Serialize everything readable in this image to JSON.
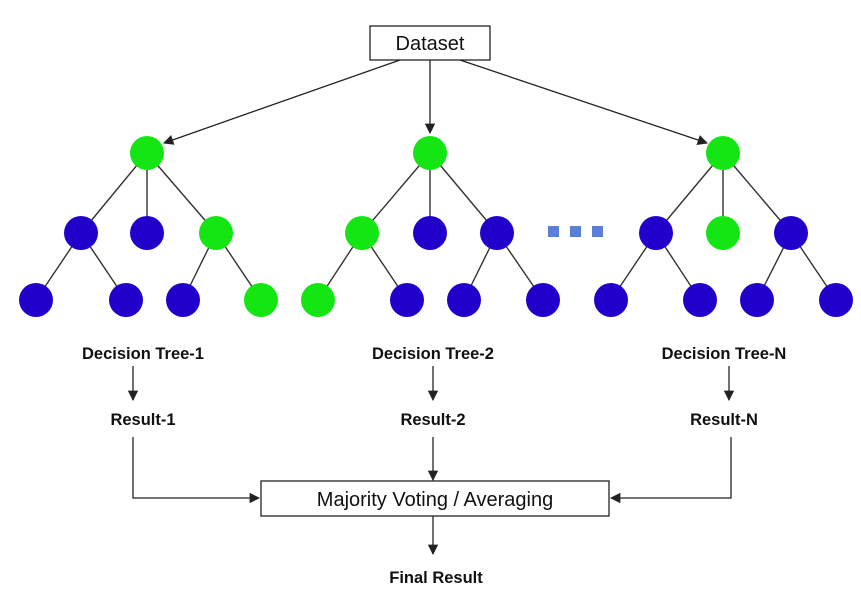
{
  "diagram": {
    "dataset_label": "Dataset",
    "aggregator_label": "Majority Voting / Averaging",
    "final_label": "Final Result",
    "trees": [
      {
        "name": "Decision Tree-1",
        "result": "Result-1",
        "highlight": [
          "root",
          "l1_2",
          "l2_3"
        ]
      },
      {
        "name": "Decision Tree-2",
        "result": "Result-2",
        "highlight": [
          "root",
          "l1_0",
          "l2_0"
        ]
      },
      {
        "name": "Decision Tree-N",
        "result": "Result-N",
        "highlight": [
          "root",
          "l1_1"
        ]
      }
    ],
    "ellipsis": "...",
    "colors": {
      "highlighted_node": "#14e614",
      "normal_node": "#2200cc",
      "ellipsis": "#5a7fd6",
      "line": "#333333"
    }
  }
}
